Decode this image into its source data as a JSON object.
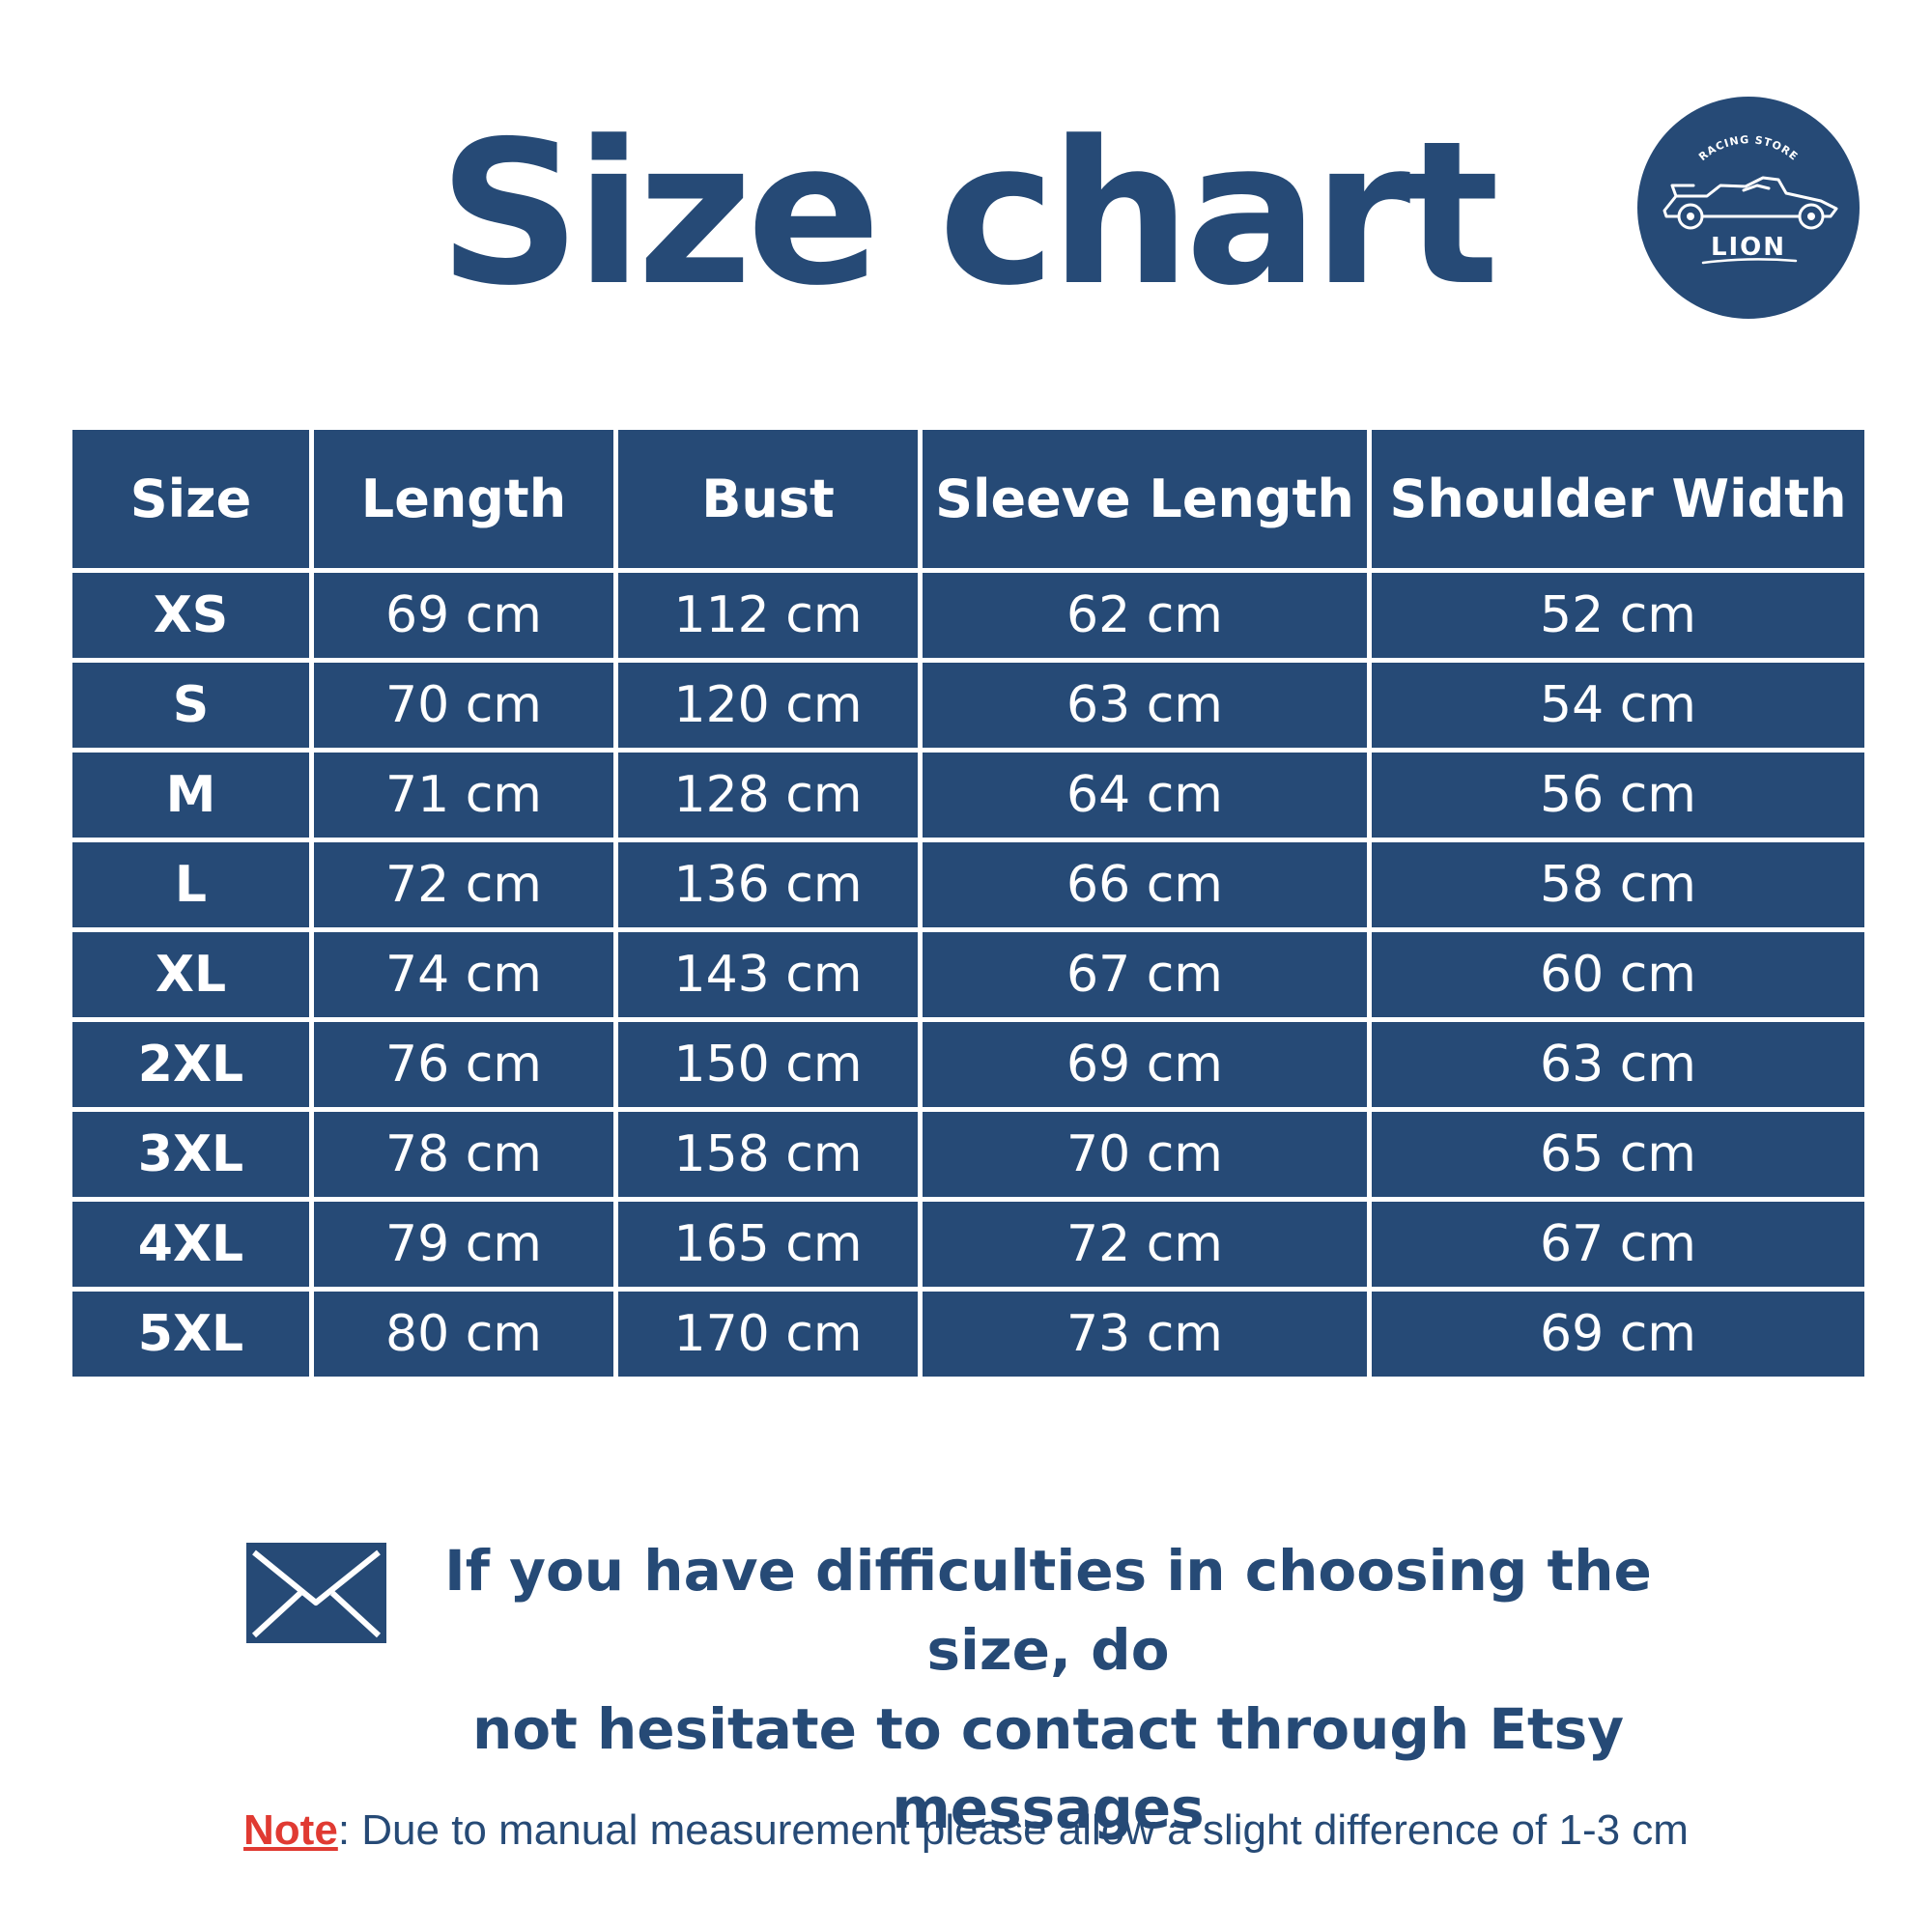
{
  "title": "Size chart",
  "logo": {
    "top_text": "RACING STORE",
    "brand": "LION",
    "icon": "race-car-icon",
    "color": "#264a76"
  },
  "table": {
    "headers": [
      "Size",
      "Length",
      "Bust",
      "Sleeve Length",
      "Shoulder Width"
    ],
    "rows": [
      [
        "XS",
        "69 cm",
        "112 cm",
        "62 cm",
        "52 cm"
      ],
      [
        "S",
        "70 cm",
        "120 cm",
        "63 cm",
        "54 cm"
      ],
      [
        "M",
        "71 cm",
        "128 cm",
        "64 cm",
        "56 cm"
      ],
      [
        "L",
        "72 cm",
        "136 cm",
        "66 cm",
        "58 cm"
      ],
      [
        "XL",
        "74 cm",
        "143 cm",
        "67 cm",
        "60 cm"
      ],
      [
        "2XL",
        "76 cm",
        "150 cm",
        "69 cm",
        "63 cm"
      ],
      [
        "3XL",
        "78 cm",
        "158 cm",
        "70 cm",
        "65 cm"
      ],
      [
        "4XL",
        "79 cm",
        "165 cm",
        "72 cm",
        "67 cm"
      ],
      [
        "5XL",
        "80 cm",
        "170 cm",
        "73 cm",
        "69 cm"
      ]
    ]
  },
  "contact": {
    "icon": "envelope-icon",
    "line1": "If you have difficulties in choosing the size, do",
    "line2": "not hesitate to contact through Etsy messages"
  },
  "note": {
    "label": "Note",
    "text": ": Due to manual measurement please allow a slight difference of 1-3 cm"
  },
  "colors": {
    "primary": "#264a76",
    "note_label": "#e03a32",
    "background": "#ffffff"
  }
}
